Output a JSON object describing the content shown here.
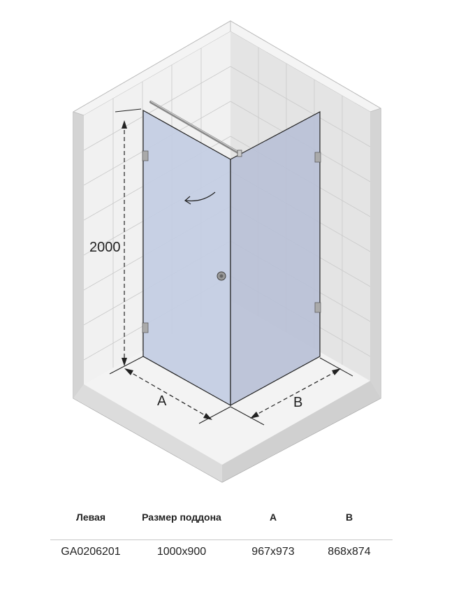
{
  "diagram": {
    "height_label": "2000",
    "dim_a_label": "A",
    "dim_b_label": "B",
    "colors": {
      "glass": "#c3cde3",
      "glass_side": "#b8c0d6",
      "wall": "#efefef",
      "outline": "#222222"
    }
  },
  "table": {
    "headers": [
      "Левая",
      "Размер поддона",
      "A",
      "B"
    ],
    "rows": [
      [
        "GA0206201",
        "1000x900",
        "967x973",
        "868x874"
      ]
    ]
  }
}
